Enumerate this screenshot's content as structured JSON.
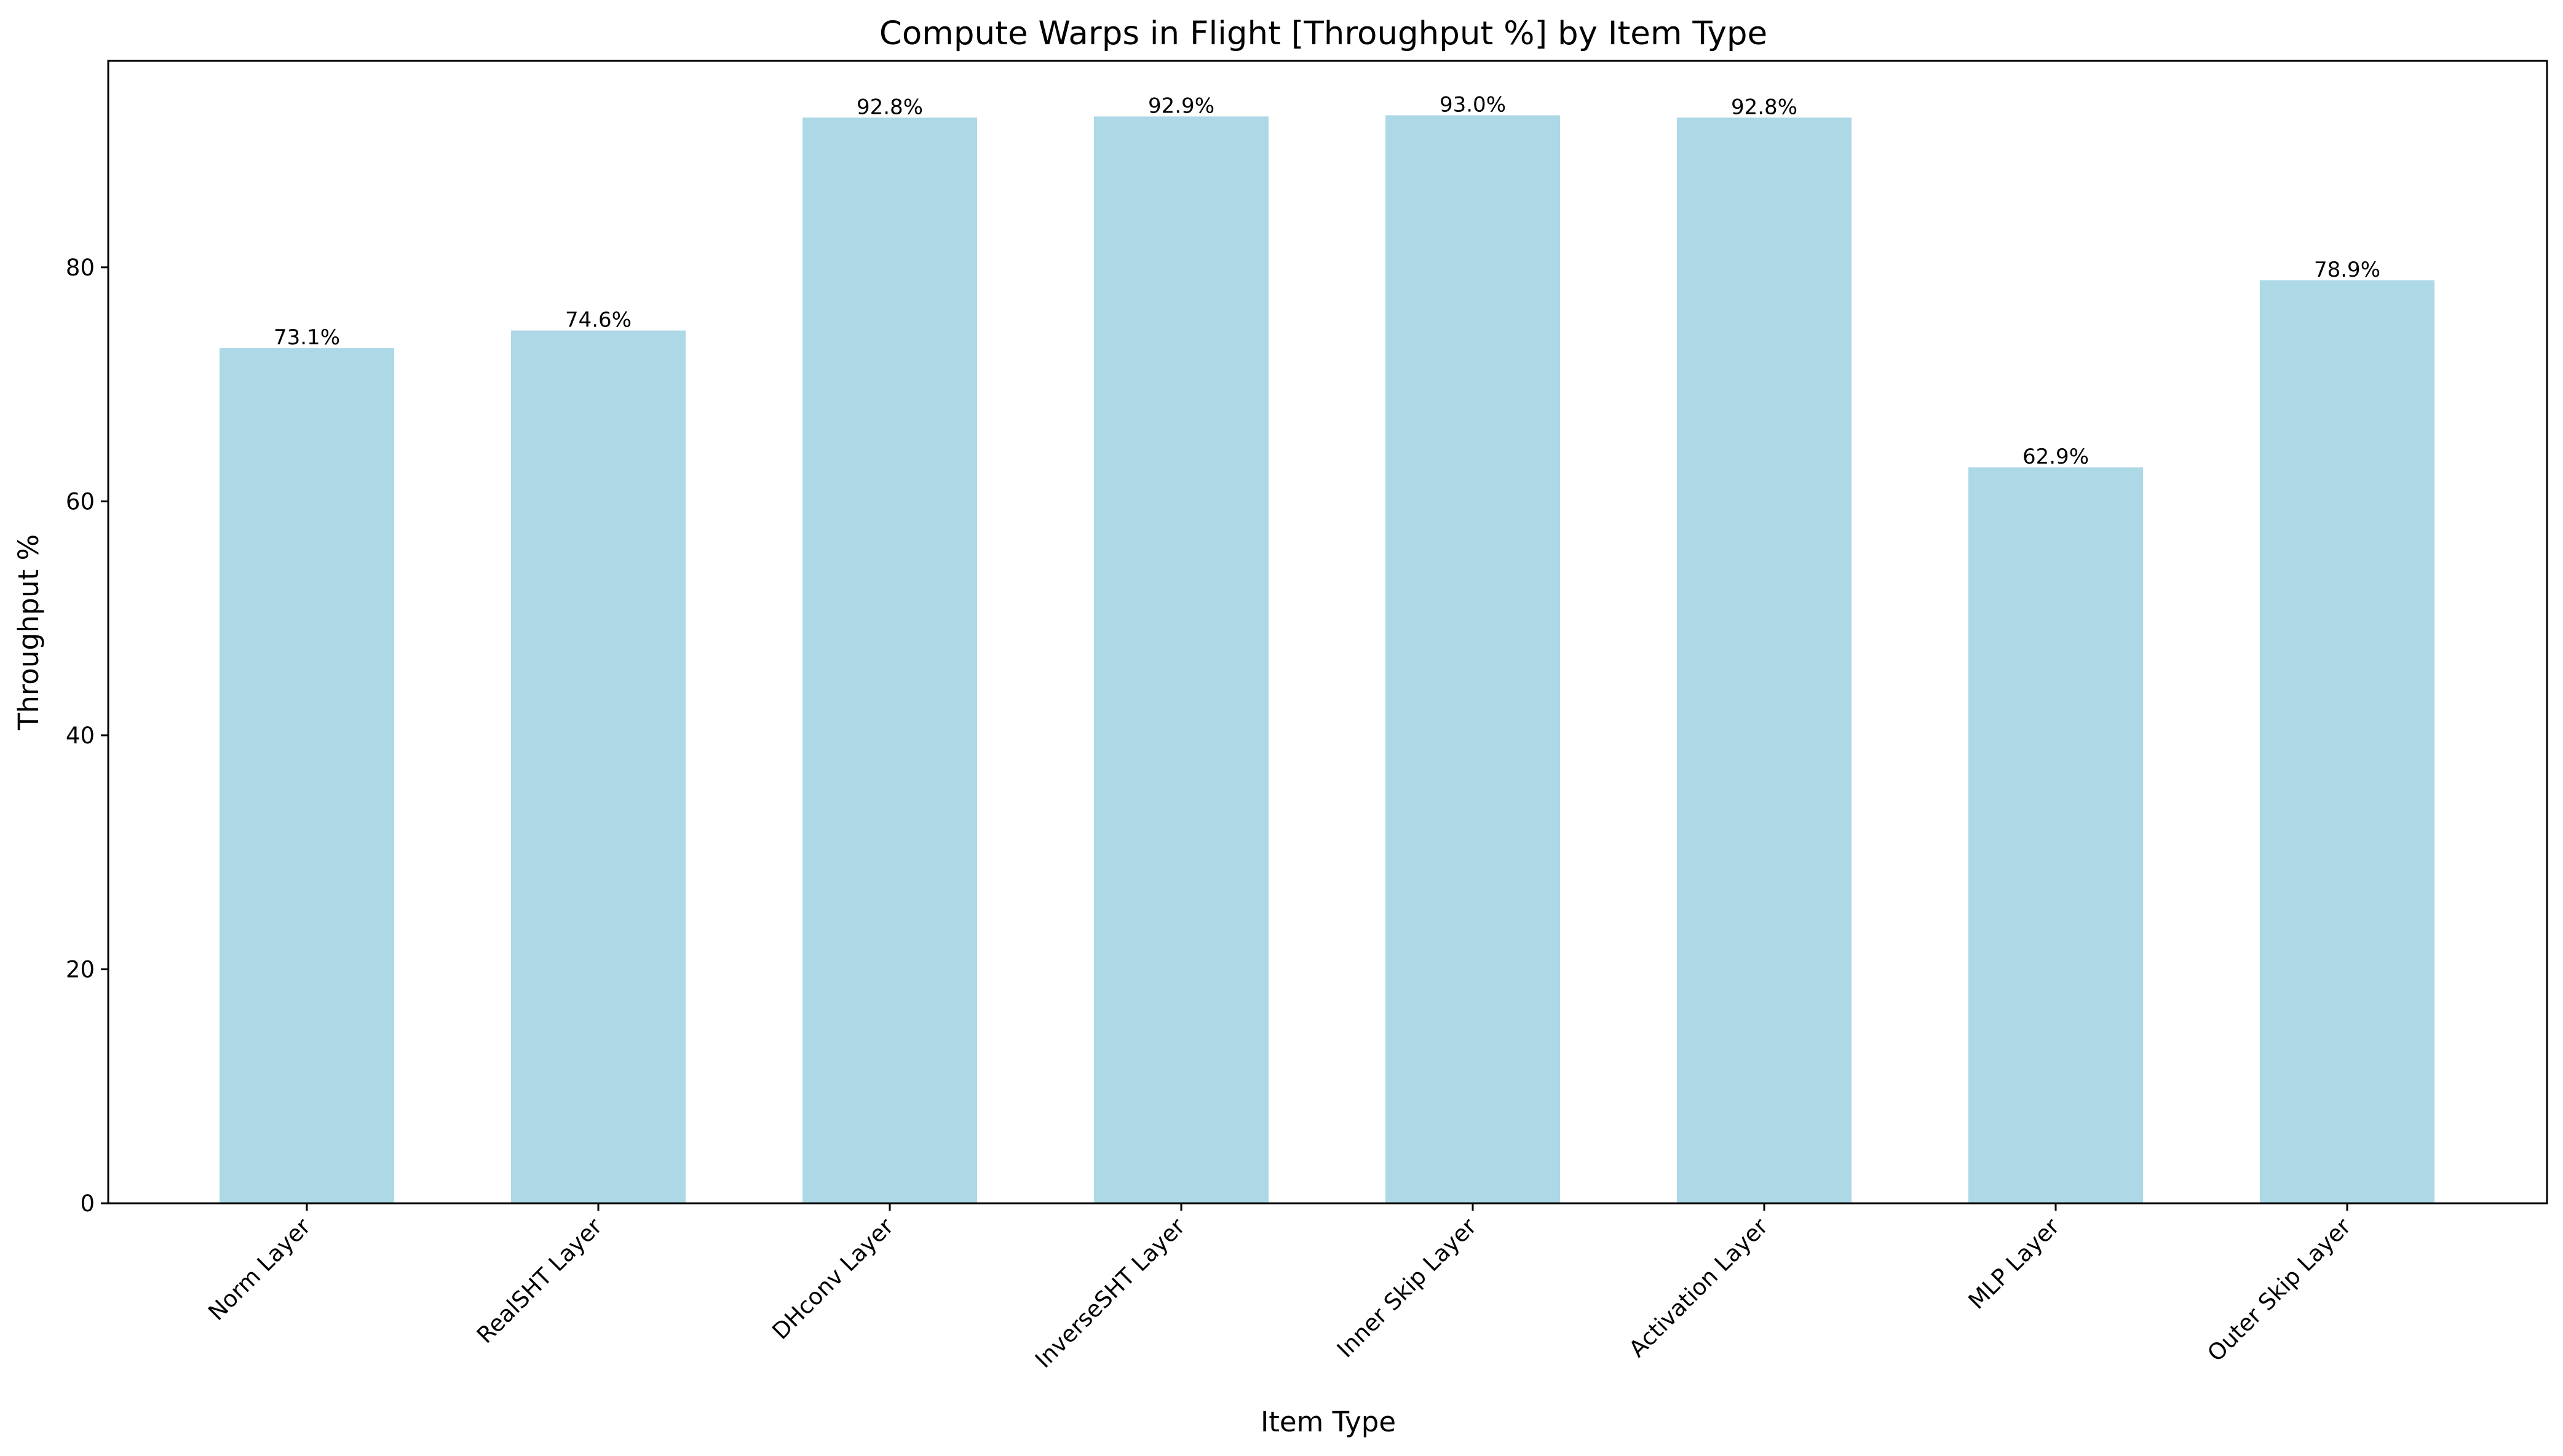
{
  "chart_data": {
    "type": "bar",
    "title": "Compute Warps in Flight [Throughput %] by Item Type",
    "xlabel": "Item Type",
    "ylabel": "Throughput %",
    "categories": [
      "Norm Layer",
      "RealSHT Layer",
      "DHconv Layer",
      "InverseSHT Layer",
      "Inner Skip Layer",
      "Activation Layer",
      "MLP Layer",
      "Outer Skip Layer"
    ],
    "values": [
      73.1,
      74.6,
      92.8,
      92.9,
      93.0,
      92.8,
      62.9,
      78.9
    ],
    "value_labels": [
      "73.1%",
      "74.6%",
      "92.8%",
      "92.9%",
      "93.0%",
      "92.8%",
      "62.9%",
      "78.9%"
    ],
    "ylim": [
      0,
      97.65
    ],
    "yticks": [
      0,
      20,
      40,
      60,
      80
    ],
    "bar_color": "#add8e6",
    "grid": false,
    "legend": "none"
  }
}
